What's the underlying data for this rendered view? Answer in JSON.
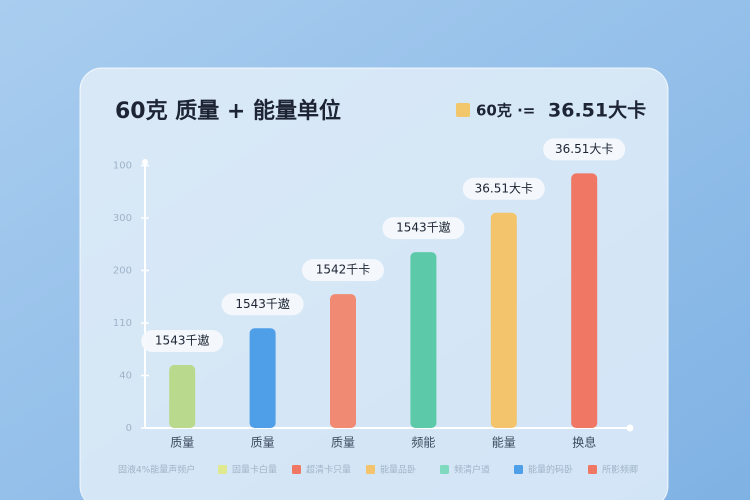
{
  "chart_data": {
    "type": "bar",
    "title": "60克 质量 + 能量单位",
    "note_label": "60克 ·=",
    "note_value": "36.51大卡",
    "note_color": "#f2c66a",
    "categories": [
      "质量",
      "质量",
      "质量",
      "频能",
      "能量",
      "换息"
    ],
    "values": [
      24,
      38,
      51,
      67,
      82,
      97
    ],
    "colors": [
      "#b9da8c",
      "#4f9ee8",
      "#f08a72",
      "#5ccaa9",
      "#f3c46b",
      "#ef7764"
    ],
    "bar_labels": [
      "1543千遨",
      "1543千遨",
      "1542千卡",
      "1543千遨",
      "36.51大卡",
      "36.51大卡"
    ],
    "ylim": [
      0,
      100
    ],
    "yticks": [
      0,
      {
        "value": 20,
        "label": "40"
      },
      {
        "value": 40,
        "label": "110"
      },
      {
        "value": 60,
        "label": "200"
      },
      {
        "value": 80,
        "label": "300"
      },
      100
    ],
    "legend_caption": "固液4%能量声频户",
    "legend": [
      {
        "name": "固量卡白量",
        "color": "#dfe98f"
      },
      {
        "name": "超清卡只量",
        "color": "#ef7764"
      },
      {
        "name": "能量品卧",
        "color": "#f3c46b"
      },
      {
        "name": "频清户道",
        "color": "#7fd9bf"
      },
      {
        "name": "能量的码卧",
        "color": "#4f9ee8"
      },
      {
        "name": "所影频卿",
        "color": "#ef7764"
      }
    ]
  }
}
